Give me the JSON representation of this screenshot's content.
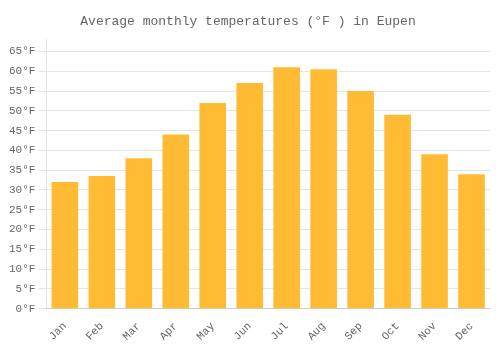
{
  "chart_data": {
    "type": "bar",
    "title": "Average monthly temperatures (°F ) in Eupen",
    "categories": [
      "Jan",
      "Feb",
      "Mar",
      "Apr",
      "May",
      "Jun",
      "Jul",
      "Aug",
      "Sep",
      "Oct",
      "Nov",
      "Dec"
    ],
    "values": [
      32,
      33.5,
      38,
      44,
      52,
      57,
      61,
      60.5,
      55,
      49,
      39,
      34
    ],
    "color": "#FFBB33",
    "ylim": [
      0,
      68
    ],
    "yticks": [
      {
        "value": 0,
        "label": "0°F"
      },
      {
        "value": 5,
        "label": "5°F"
      },
      {
        "value": 10,
        "label": "10°F"
      },
      {
        "value": 15,
        "label": "15°F"
      },
      {
        "value": 20,
        "label": "20°F"
      },
      {
        "value": 25,
        "label": "25°F"
      },
      {
        "value": 30,
        "label": "30°F"
      },
      {
        "value": 35,
        "label": "35°F"
      },
      {
        "value": 40,
        "label": "40°F"
      },
      {
        "value": 45,
        "label": "45°F"
      },
      {
        "value": 50,
        "label": "50°F"
      },
      {
        "value": 55,
        "label": "55°F"
      },
      {
        "value": 60,
        "label": "60°F"
      },
      {
        "value": 65,
        "label": "65°F"
      }
    ],
    "grid": true
  }
}
